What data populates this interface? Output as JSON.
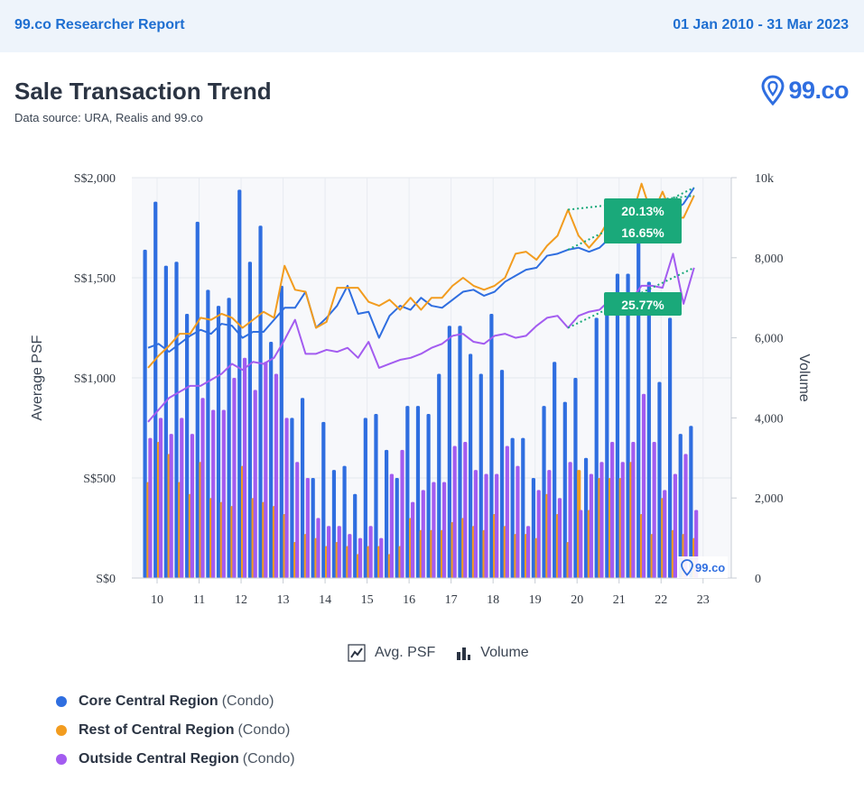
{
  "header": {
    "brand": "99.co Researcher Report",
    "date_range": "01 Jan 2010 - 31 Mar 2023"
  },
  "report": {
    "title": "Sale Transaction Trend",
    "source": "Data source: URA, Realis and 99.co",
    "logo_text": "99.co",
    "watermark_text": "99.co"
  },
  "chart_toggles": {
    "psf_label": "Avg. PSF",
    "volume_label": "Volume"
  },
  "legend": [
    {
      "name": "Core Central Region",
      "suffix": "(Condo)",
      "color": "#2f6ee0"
    },
    {
      "name": "Rest of Central Region",
      "suffix": "(Condo)",
      "color": "#f29c1f"
    },
    {
      "name": "Outside Central Region",
      "suffix": "(Condo)",
      "color": "#a35cf0"
    }
  ],
  "chart_data": {
    "type": "bar",
    "ylabel": "Average PSF",
    "y2label": "Volume",
    "ylim": [
      0,
      2000
    ],
    "y2lim": [
      0,
      10000
    ],
    "y_ticks": [
      "S$0",
      "S$500",
      "S$1,000",
      "S$1,500",
      "S$2,000"
    ],
    "y2_ticks": [
      "0",
      "2,000",
      "4,000",
      "6,000",
      "8,000",
      "10k"
    ],
    "x_ticks": [
      "10",
      "11",
      "12",
      "13",
      "14",
      "15",
      "16",
      "17",
      "18",
      "19",
      "20",
      "21",
      "22",
      "23"
    ],
    "grid": true,
    "quarters": [
      "2010 Q1",
      "2010 Q2",
      "2010 Q3",
      "2010 Q4",
      "2011 Q1",
      "2011 Q2",
      "2011 Q3",
      "2011 Q4",
      "2012 Q1",
      "2012 Q2",
      "2012 Q3",
      "2012 Q4",
      "2013 Q1",
      "2013 Q2",
      "2013 Q3",
      "2013 Q4",
      "2014 Q1",
      "2014 Q2",
      "2014 Q3",
      "2014 Q4",
      "2015 Q1",
      "2015 Q2",
      "2015 Q3",
      "2015 Q4",
      "2016 Q1",
      "2016 Q2",
      "2016 Q3",
      "2016 Q4",
      "2017 Q1",
      "2017 Q2",
      "2017 Q3",
      "2017 Q4",
      "2018 Q1",
      "2018 Q2",
      "2018 Q3",
      "2018 Q4",
      "2019 Q1",
      "2019 Q2",
      "2019 Q3",
      "2019 Q4",
      "2020 Q1",
      "2020 Q2",
      "2020 Q3",
      "2020 Q4",
      "2021 Q1",
      "2021 Q2",
      "2021 Q3",
      "2021 Q4",
      "2022 Q1",
      "2022 Q2",
      "2022 Q3",
      "2022 Q4",
      "2023 Q1"
    ],
    "volume_series": [
      {
        "name": "Core Central Region",
        "color": "#2f6ee0",
        "values": [
          8200,
          9400,
          7800,
          7900,
          6600,
          8900,
          7200,
          6800,
          7000,
          9700,
          7900,
          8800,
          5900,
          7300,
          4000,
          4500,
          2500,
          3900,
          2700,
          2800,
          2100,
          4000,
          4100,
          3200,
          2500,
          4300,
          4300,
          4100,
          5100,
          6300,
          6300,
          5600,
          5100,
          6600,
          5200,
          3500,
          3500,
          2500,
          4300,
          5400,
          4400,
          5000,
          3000,
          6500,
          6700,
          7600,
          7600,
          8900,
          7400,
          4900,
          6500,
          3600,
          3800
        ]
      },
      {
        "name": "Rest of Central Region",
        "color": "#f29c1f",
        "values": [
          2400,
          3400,
          3100,
          2400,
          2100,
          2900,
          2000,
          1900,
          1800,
          2800,
          2000,
          1900,
          1800,
          1600,
          900,
          1100,
          1000,
          800,
          900,
          800,
          600,
          800,
          800,
          600,
          800,
          1500,
          1200,
          1200,
          1200,
          1400,
          1500,
          1300,
          1200,
          1600,
          1300,
          1100,
          1100,
          1000,
          2100,
          1600,
          900,
          2700,
          1700,
          2500,
          2500,
          2500,
          2900,
          1600,
          1100,
          2000,
          1200,
          1100,
          1000
        ]
      },
      {
        "name": "Outside Central Region",
        "color": "#a35cf0",
        "values": [
          3500,
          4000,
          3600,
          4000,
          3600,
          4500,
          4200,
          4200,
          5000,
          5500,
          4700,
          5400,
          5100,
          4000,
          2900,
          2500,
          1500,
          1300,
          1300,
          1100,
          1000,
          1300,
          1000,
          2600,
          3200,
          1900,
          2200,
          2400,
          2400,
          3300,
          3400,
          2700,
          2600,
          2600,
          3300,
          2800,
          1300,
          2200,
          2700,
          2000,
          2900,
          1700,
          2600,
          2900,
          3400,
          2900,
          3400,
          4600,
          3400,
          2200,
          2600,
          3100,
          1700
        ]
      }
    ],
    "psf_series": [
      {
        "name": "Core Central Region",
        "color": "#2f6ee0",
        "values": [
          1150,
          1170,
          1130,
          1170,
          1210,
          1240,
          1220,
          1270,
          1260,
          1200,
          1230,
          1230,
          1290,
          1350,
          1350,
          1430,
          1250,
          1300,
          1360,
          1460,
          1320,
          1330,
          1200,
          1310,
          1360,
          1340,
          1400,
          1360,
          1350,
          1390,
          1430,
          1440,
          1410,
          1430,
          1480,
          1510,
          1540,
          1550,
          1610,
          1620,
          1640,
          1650,
          1630,
          1650,
          1700,
          1700,
          1740,
          1810,
          1850,
          1870,
          1830,
          1870,
          1950
        ]
      },
      {
        "name": "Rest of Central Region",
        "color": "#f29c1f",
        "values": [
          1050,
          1110,
          1160,
          1220,
          1220,
          1300,
          1290,
          1320,
          1300,
          1250,
          1290,
          1330,
          1300,
          1560,
          1440,
          1430,
          1250,
          1280,
          1450,
          1450,
          1450,
          1380,
          1360,
          1390,
          1340,
          1400,
          1340,
          1400,
          1400,
          1460,
          1500,
          1460,
          1440,
          1460,
          1500,
          1620,
          1630,
          1590,
          1660,
          1710,
          1840,
          1710,
          1650,
          1710,
          1800,
          1830,
          1790,
          1970,
          1810,
          1930,
          1800,
          1800,
          1910
        ]
      },
      {
        "name": "Outside Central Region",
        "color": "#a35cf0",
        "values": [
          780,
          840,
          900,
          930,
          960,
          960,
          990,
          1020,
          1070,
          1040,
          1080,
          1070,
          1100,
          1190,
          1290,
          1120,
          1120,
          1140,
          1130,
          1150,
          1100,
          1180,
          1050,
          1070,
          1090,
          1100,
          1120,
          1150,
          1170,
          1210,
          1220,
          1180,
          1170,
          1210,
          1220,
          1200,
          1210,
          1260,
          1300,
          1310,
          1250,
          1310,
          1330,
          1340,
          1390,
          1380,
          1390,
          1460,
          1460,
          1450,
          1620,
          1370,
          1550
        ]
      }
    ],
    "annotations": [
      {
        "text": "20.13%",
        "color": "#1aa97a"
      },
      {
        "text": "16.65%",
        "color": "#1aa97a"
      },
      {
        "text": "25.77%",
        "color": "#1aa97a"
      }
    ]
  }
}
